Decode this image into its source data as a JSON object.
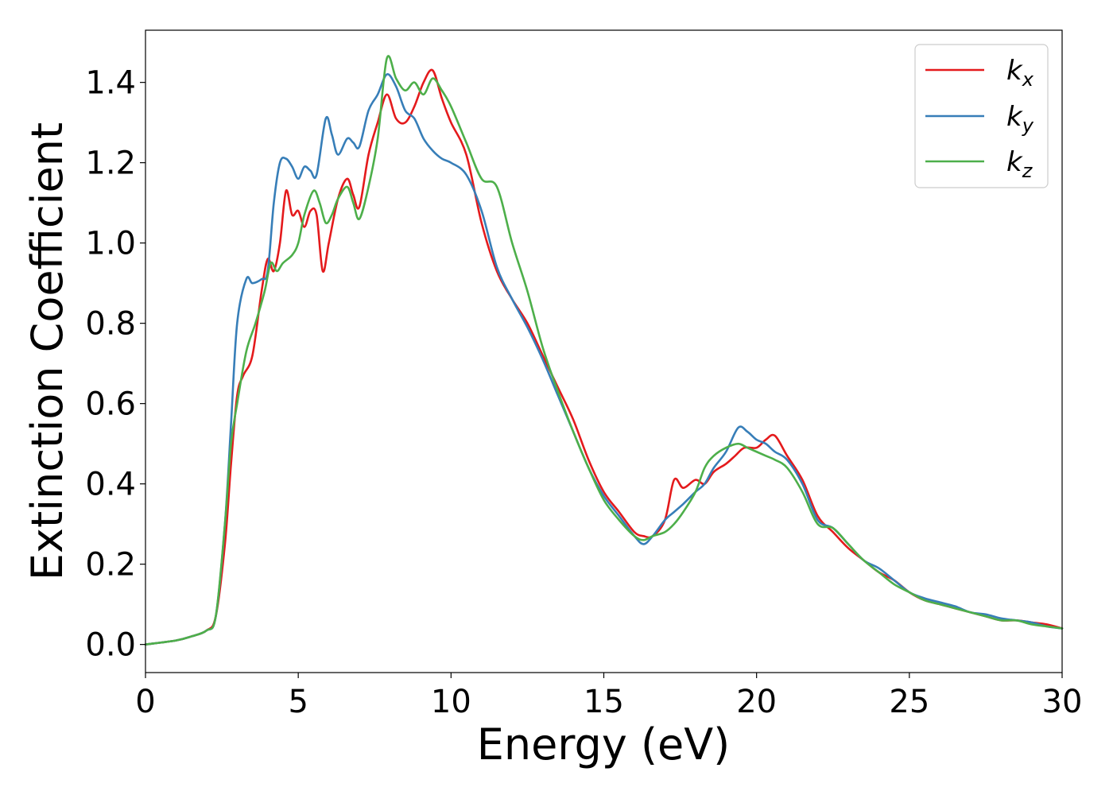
{
  "chart_data": {
    "type": "line",
    "xlabel": "Energy (eV)",
    "ylabel": "Extinction Coefficient",
    "xlim": [
      0,
      30
    ],
    "ylim": [
      -0.07,
      1.53
    ],
    "xticks": [
      0,
      5,
      10,
      15,
      20,
      25,
      30
    ],
    "xtick_labels": [
      "0",
      "5",
      "10",
      "15",
      "20",
      "25",
      "30"
    ],
    "yticks": [
      0.0,
      0.2,
      0.4,
      0.6,
      0.8,
      1.0,
      1.2,
      1.4
    ],
    "ytick_labels": [
      "0.0",
      "0.2",
      "0.4",
      "0.6",
      "0.8",
      "1.0",
      "1.2",
      "1.4"
    ],
    "grid": false,
    "legend_position": "top-right",
    "series": [
      {
        "name": "k",
        "subscript": "x",
        "color": "#e41a1c",
        "x": [
          0,
          1,
          1.5,
          2,
          2.3,
          2.6,
          2.8,
          3.0,
          3.2,
          3.5,
          3.8,
          4.0,
          4.2,
          4.4,
          4.6,
          4.8,
          5.0,
          5.2,
          5.4,
          5.6,
          5.8,
          6.0,
          6.3,
          6.6,
          6.8,
          7.0,
          7.3,
          7.6,
          7.9,
          8.2,
          8.5,
          8.8,
          9.1,
          9.4,
          9.7,
          10.0,
          10.5,
          11.0,
          11.5,
          12.0,
          12.5,
          13.0,
          13.5,
          14.0,
          14.5,
          15.0,
          15.5,
          16.0,
          16.3,
          16.6,
          17.0,
          17.3,
          17.6,
          18.0,
          18.3,
          18.6,
          19.0,
          19.3,
          19.6,
          20.0,
          20.3,
          20.6,
          21.0,
          21.5,
          22.0,
          22.5,
          23.0,
          23.5,
          24.0,
          24.5,
          25.0,
          25.5,
          26.0,
          26.5,
          27.0,
          27.5,
          28.0,
          28.5,
          29.0,
          29.5,
          30.0
        ],
        "y": [
          0.0,
          0.01,
          0.02,
          0.035,
          0.07,
          0.25,
          0.45,
          0.62,
          0.67,
          0.72,
          0.88,
          0.96,
          0.93,
          1.0,
          1.13,
          1.07,
          1.08,
          1.04,
          1.08,
          1.07,
          0.93,
          1.0,
          1.11,
          1.16,
          1.12,
          1.09,
          1.22,
          1.3,
          1.37,
          1.31,
          1.3,
          1.34,
          1.4,
          1.43,
          1.36,
          1.3,
          1.22,
          1.05,
          0.93,
          0.86,
          0.8,
          0.72,
          0.64,
          0.56,
          0.46,
          0.38,
          0.33,
          0.28,
          0.27,
          0.27,
          0.31,
          0.41,
          0.39,
          0.41,
          0.4,
          0.43,
          0.45,
          0.47,
          0.49,
          0.49,
          0.51,
          0.52,
          0.47,
          0.41,
          0.32,
          0.28,
          0.24,
          0.21,
          0.18,
          0.16,
          0.13,
          0.11,
          0.1,
          0.09,
          0.08,
          0.07,
          0.06,
          0.06,
          0.055,
          0.05,
          0.04
        ]
      },
      {
        "name": "k",
        "subscript": "y",
        "color": "#377eb8",
        "x": [
          0,
          1,
          1.5,
          2,
          2.3,
          2.6,
          2.8,
          3.0,
          3.3,
          3.5,
          3.8,
          4.0,
          4.2,
          4.4,
          4.6,
          4.8,
          5.0,
          5.2,
          5.4,
          5.6,
          5.9,
          6.1,
          6.3,
          6.6,
          6.8,
          7.0,
          7.3,
          7.6,
          7.9,
          8.2,
          8.5,
          8.8,
          9.1,
          9.4,
          9.7,
          10.0,
          10.5,
          11.0,
          11.5,
          12.0,
          12.5,
          13.0,
          13.5,
          14.0,
          14.5,
          15.0,
          15.5,
          16.0,
          16.3,
          16.6,
          17.0,
          17.3,
          17.6,
          18.0,
          18.3,
          18.6,
          19.0,
          19.4,
          19.7,
          20.0,
          20.3,
          20.6,
          21.0,
          21.5,
          22.0,
          22.5,
          23.0,
          23.5,
          24.0,
          24.5,
          25.0,
          25.5,
          26.0,
          26.5,
          27.0,
          27.5,
          28.0,
          28.5,
          29.0,
          29.5,
          30.0
        ],
        "y": [
          0.0,
          0.01,
          0.02,
          0.035,
          0.07,
          0.3,
          0.55,
          0.8,
          0.91,
          0.9,
          0.91,
          0.93,
          1.1,
          1.2,
          1.21,
          1.19,
          1.16,
          1.19,
          1.18,
          1.17,
          1.31,
          1.27,
          1.22,
          1.26,
          1.25,
          1.24,
          1.33,
          1.37,
          1.42,
          1.39,
          1.33,
          1.31,
          1.26,
          1.23,
          1.21,
          1.2,
          1.17,
          1.08,
          0.94,
          0.86,
          0.79,
          0.71,
          0.62,
          0.53,
          0.44,
          0.37,
          0.32,
          0.27,
          0.25,
          0.27,
          0.31,
          0.33,
          0.35,
          0.38,
          0.4,
          0.44,
          0.48,
          0.54,
          0.53,
          0.51,
          0.5,
          0.48,
          0.46,
          0.4,
          0.31,
          0.29,
          0.25,
          0.21,
          0.19,
          0.16,
          0.13,
          0.115,
          0.105,
          0.095,
          0.08,
          0.075,
          0.065,
          0.06,
          0.055,
          0.045,
          0.04
        ]
      },
      {
        "name": "k",
        "subscript": "z",
        "color": "#4daf4a",
        "x": [
          0,
          1,
          1.5,
          2,
          2.3,
          2.6,
          2.8,
          3.0,
          3.3,
          3.6,
          3.9,
          4.1,
          4.3,
          4.5,
          4.8,
          5.0,
          5.2,
          5.5,
          5.7,
          5.9,
          6.1,
          6.3,
          6.6,
          6.8,
          7.0,
          7.3,
          7.6,
          7.9,
          8.2,
          8.5,
          8.8,
          9.1,
          9.4,
          9.7,
          10.0,
          10.5,
          11.0,
          11.5,
          12.0,
          12.5,
          13.0,
          13.5,
          14.0,
          14.5,
          15.0,
          15.5,
          16.0,
          16.3,
          16.6,
          17.0,
          17.3,
          17.6,
          18.0,
          18.3,
          18.6,
          19.0,
          19.4,
          19.7,
          20.0,
          20.3,
          20.6,
          21.0,
          21.5,
          22.0,
          22.5,
          23.0,
          23.5,
          24.0,
          24.5,
          25.0,
          25.5,
          26.0,
          26.5,
          27.0,
          27.5,
          28.0,
          28.5,
          29.0,
          29.5,
          30.0
        ],
        "y": [
          0.0,
          0.01,
          0.02,
          0.035,
          0.07,
          0.3,
          0.5,
          0.6,
          0.73,
          0.8,
          0.88,
          0.95,
          0.93,
          0.95,
          0.97,
          1.0,
          1.07,
          1.13,
          1.1,
          1.05,
          1.07,
          1.11,
          1.14,
          1.1,
          1.06,
          1.14,
          1.26,
          1.46,
          1.41,
          1.38,
          1.4,
          1.37,
          1.41,
          1.38,
          1.34,
          1.25,
          1.16,
          1.14,
          1.0,
          0.88,
          0.74,
          0.63,
          0.53,
          0.44,
          0.36,
          0.31,
          0.27,
          0.26,
          0.27,
          0.28,
          0.3,
          0.33,
          0.38,
          0.44,
          0.47,
          0.49,
          0.5,
          0.49,
          0.48,
          0.47,
          0.46,
          0.44,
          0.38,
          0.3,
          0.29,
          0.25,
          0.21,
          0.18,
          0.15,
          0.13,
          0.11,
          0.1,
          0.09,
          0.08,
          0.07,
          0.06,
          0.06,
          0.05,
          0.045,
          0.04
        ]
      }
    ]
  }
}
